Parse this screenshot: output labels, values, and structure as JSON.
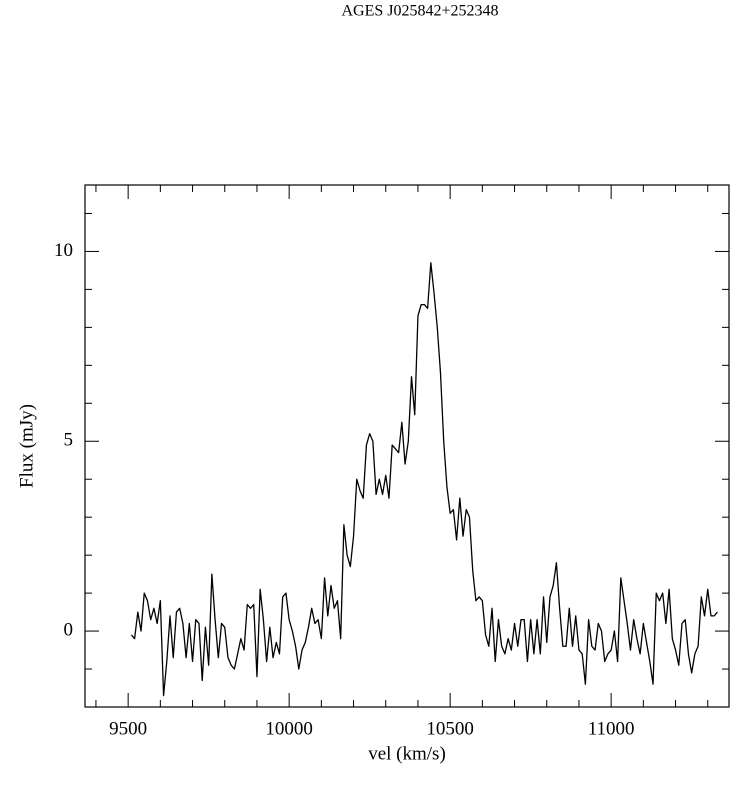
{
  "chart_data": {
    "type": "line",
    "title": "AGES J025842+252348",
    "x_label": "vel (km/s)",
    "y_label": "Flux (mJy)",
    "xlim": [
      9366,
      11366
    ],
    "ylim": [
      -2,
      11.75
    ],
    "xticks": [
      9500,
      10000,
      10500,
      11000
    ],
    "xminorticks": [
      9400,
      9600,
      9700,
      9800,
      9900,
      10100,
      10200,
      10300,
      10400,
      10600,
      10700,
      10800,
      10900,
      11100,
      11200,
      11300
    ],
    "yticks": [
      0,
      5,
      10
    ],
    "yminorticks": [
      -2,
      -1,
      1,
      2,
      3,
      4,
      6,
      7,
      8,
      9,
      11
    ],
    "color": "#000000",
    "x": [
      9510,
      9520,
      9530,
      9540,
      9550,
      9560,
      9570,
      9580,
      9590,
      9600,
      9610,
      9620,
      9630,
      9640,
      9650,
      9660,
      9670,
      9680,
      9690,
      9700,
      9710,
      9720,
      9730,
      9740,
      9750,
      9760,
      9770,
      9780,
      9790,
      9800,
      9810,
      9820,
      9830,
      9840,
      9850,
      9860,
      9870,
      9880,
      9890,
      9900,
      9910,
      9920,
      9930,
      9940,
      9950,
      9960,
      9970,
      9980,
      9990,
      10000,
      10010,
      10020,
      10030,
      10040,
      10050,
      10060,
      10070,
      10080,
      10090,
      10100,
      10110,
      10120,
      10130,
      10140,
      10150,
      10160,
      10170,
      10180,
      10190,
      10200,
      10210,
      10220,
      10230,
      10240,
      10250,
      10260,
      10270,
      10280,
      10290,
      10300,
      10310,
      10320,
      10330,
      10340,
      10350,
      10360,
      10370,
      10380,
      10390,
      10400,
      10410,
      10420,
      10430,
      10440,
      10450,
      10460,
      10470,
      10480,
      10490,
      10500,
      10510,
      10520,
      10530,
      10540,
      10550,
      10560,
      10570,
      10580,
      10590,
      10600,
      10610,
      10620,
      10630,
      10640,
      10650,
      10660,
      10670,
      10680,
      10690,
      10700,
      10710,
      10720,
      10730,
      10740,
      10750,
      10760,
      10770,
      10780,
      10790,
      10800,
      10810,
      10820,
      10830,
      10840,
      10850,
      10860,
      10870,
      10880,
      10890,
      10900,
      10910,
      10920,
      10930,
      10940,
      10950,
      10960,
      10970,
      10980,
      10990,
      11000,
      11010,
      11020,
      11030,
      11040,
      11050,
      11060,
      11070,
      11080,
      11090,
      11100,
      11110,
      11120,
      11130,
      11140,
      11150,
      11160,
      11170,
      11180,
      11190,
      11200,
      11210,
      11220,
      11230,
      11240,
      11250,
      11260,
      11270,
      11280,
      11290,
      11300,
      11310,
      11320,
      11330
    ],
    "values": [
      -0.1,
      -0.2,
      0.5,
      0.0,
      1.0,
      0.8,
      0.3,
      0.6,
      0.2,
      0.8,
      -1.7,
      -0.8,
      0.4,
      -0.7,
      0.5,
      0.6,
      0.2,
      -0.7,
      0.2,
      -0.8,
      0.3,
      0.2,
      -1.3,
      0.1,
      -0.9,
      1.5,
      0.3,
      -0.7,
      0.2,
      0.1,
      -0.7,
      -0.9,
      -1.0,
      -0.6,
      -0.2,
      -0.5,
      0.7,
      0.6,
      0.7,
      -1.2,
      1.1,
      0.3,
      -0.8,
      0.1,
      -0.7,
      -0.3,
      -0.6,
      0.9,
      1.0,
      0.3,
      0.0,
      -0.4,
      -1.0,
      -0.5,
      -0.3,
      0.1,
      0.6,
      0.2,
      0.3,
      -0.2,
      1.4,
      0.4,
      1.2,
      0.6,
      0.8,
      -0.2,
      2.8,
      2.0,
      1.7,
      2.5,
      4.0,
      3.7,
      3.5,
      4.9,
      5.2,
      5.0,
      3.6,
      4.0,
      3.6,
      4.1,
      3.5,
      4.9,
      4.8,
      4.7,
      5.5,
      4.4,
      5.0,
      6.7,
      5.7,
      8.3,
      8.6,
      8.6,
      8.5,
      9.7,
      8.9,
      8.0,
      6.8,
      5.0,
      3.8,
      3.1,
      3.2,
      2.4,
      3.5,
      2.5,
      3.2,
      3.0,
      1.6,
      0.8,
      0.9,
      0.8,
      -0.1,
      -0.4,
      0.6,
      -0.8,
      0.3,
      -0.4,
      -0.6,
      -0.2,
      -0.5,
      0.2,
      -0.4,
      0.3,
      0.3,
      -0.8,
      0.3,
      -0.6,
      0.3,
      -0.6,
      0.9,
      -0.3,
      0.9,
      1.2,
      1.8,
      0.6,
      -0.4,
      -0.4,
      0.6,
      -0.4,
      0.4,
      -0.5,
      -0.6,
      -1.4,
      0.3,
      -0.4,
      -0.5,
      0.2,
      0.0,
      -0.8,
      -0.6,
      -0.5,
      0.0,
      -0.8,
      1.4,
      0.8,
      0.2,
      -0.5,
      0.3,
      -0.2,
      -0.6,
      0.2,
      -0.3,
      -0.8,
      -1.4,
      1.0,
      0.8,
      1.0,
      0.2,
      1.1,
      -0.2,
      -0.5,
      -0.9,
      0.2,
      0.3,
      -0.6,
      -1.1,
      -0.6,
      -0.4,
      0.9,
      0.4,
      1.1,
      0.4,
      0.4,
      0.5
    ]
  }
}
